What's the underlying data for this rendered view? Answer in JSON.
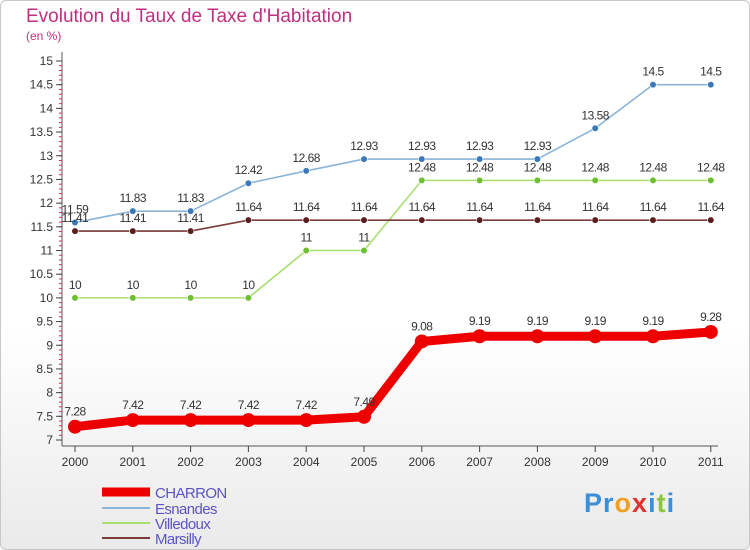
{
  "title": "Evolution du Taux de Taxe d'Habitation",
  "subtitle": "(en %)",
  "logo": {
    "parts": [
      {
        "text": "Pr",
        "color": "#3a8fd8"
      },
      {
        "text": "o",
        "color": "#f0a020"
      },
      {
        "text": "x",
        "color": "#e03030"
      },
      {
        "text": "i",
        "color": "#3a8fd8"
      },
      {
        "text": "t",
        "color": "#8cc43c"
      },
      {
        "text": "i",
        "color": "#3a8fd8"
      }
    ]
  },
  "chart_data": {
    "type": "line",
    "title": "Evolution du Taux de Taxe d'Habitation",
    "ylabel": "(en %)",
    "x": [
      "2000",
      "2001",
      "2002",
      "2003",
      "2004",
      "2005",
      "2006",
      "2007",
      "2008",
      "2009",
      "2010",
      "2011"
    ],
    "ylim": [
      7,
      15
    ],
    "yticks": [
      "7",
      "7.5",
      "8",
      "8.5",
      "9",
      "9.5",
      "10",
      "10.5",
      "11",
      "11.5",
      "12",
      "12.5",
      "13",
      "13.5",
      "14",
      "14.5",
      "15"
    ],
    "grid": false,
    "legend_position": "bottom-left",
    "series": [
      {
        "name": "CHARRON",
        "color": "#ee0000",
        "labels": [
          "7.28",
          "7.42",
          "7.42",
          "7.42",
          "7.42",
          "7.49",
          "9.08",
          "9.19",
          "9.19",
          "9.19",
          "9.19",
          "9.28"
        ],
        "values": [
          7.28,
          7.42,
          7.42,
          7.42,
          7.42,
          7.49,
          9.08,
          9.19,
          9.19,
          9.19,
          9.19,
          9.28
        ]
      },
      {
        "name": "Esnandes",
        "color": "#8ab4d8",
        "marker": "#3a78b8",
        "labels": [
          "11.59",
          "11.83",
          "11.83",
          "12.42",
          "12.68",
          "12.93",
          "12.93",
          "12.93",
          "12.93",
          "13.58",
          "14.5",
          "14.5"
        ],
        "values": [
          11.59,
          11.83,
          11.83,
          12.42,
          12.68,
          12.93,
          12.93,
          12.93,
          12.93,
          13.58,
          14.5,
          14.5
        ]
      },
      {
        "name": "Villedoux",
        "color": "#a8e070",
        "marker": "#6cc030",
        "labels": [
          "10",
          "10",
          "10",
          "10",
          "11",
          "11",
          "12.48",
          "12.48",
          "12.48",
          "12.48",
          "12.48",
          "12.48"
        ],
        "values": [
          10,
          10,
          10,
          10,
          11,
          11,
          12.48,
          12.48,
          12.48,
          12.48,
          12.48,
          12.48
        ]
      },
      {
        "name": "Marsilly",
        "color": "#7a3a3a",
        "marker": "#5a1e1e",
        "labels": [
          "11.41",
          "11.41",
          "11.41",
          "11.64",
          "11.64",
          "11.64",
          "11.64",
          "11.64",
          "11.64",
          "11.64",
          "11.64",
          "11.64"
        ],
        "values": [
          11.41,
          11.41,
          11.41,
          11.64,
          11.64,
          11.64,
          11.64,
          11.64,
          11.64,
          11.64,
          11.64,
          11.64
        ]
      }
    ]
  }
}
